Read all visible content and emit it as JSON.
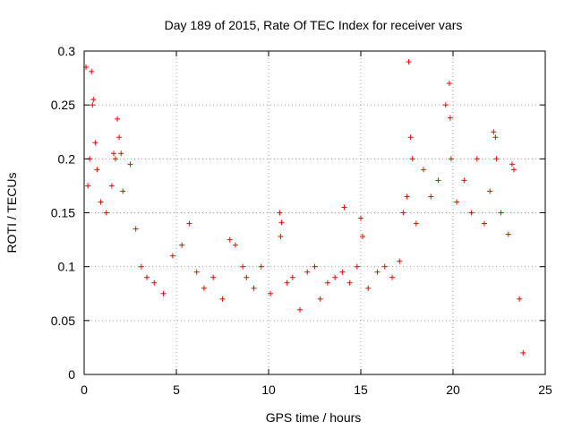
{
  "chart_data": {
    "type": "scatter",
    "title": "Day 189 of 2015, Rate Of TEC Index for receiver vars",
    "xlabel": "GPS time / hours",
    "ylabel": "ROTI / TECUs",
    "xlim": [
      0,
      25
    ],
    "ylim": [
      0,
      0.3
    ],
    "x_ticks": [
      "0",
      "5",
      "10",
      "15",
      "20",
      "25"
    ],
    "y_ticks": [
      "0",
      "0.05",
      "0.1",
      "0.15",
      "0.2",
      "0.25",
      "0.3"
    ],
    "grid": true,
    "marker": "+",
    "color": "#ff0000",
    "series": [
      {
        "name": "ROTI",
        "points": [
          [
            0.1,
            0.285
          ],
          [
            0.4,
            0.281
          ],
          [
            0.45,
            0.25
          ],
          [
            0.5,
            0.255
          ],
          [
            0.3,
            0.2
          ],
          [
            0.2,
            0.175
          ],
          [
            0.6,
            0.215
          ],
          [
            0.7,
            0.19
          ],
          [
            0.9,
            0.16
          ],
          [
            1.2,
            0.15
          ],
          [
            1.5,
            0.175
          ],
          [
            1.6,
            0.205
          ],
          [
            1.7,
            0.2
          ],
          [
            1.8,
            0.237
          ],
          [
            1.9,
            0.22
          ],
          [
            2.0,
            0.205
          ],
          [
            2.1,
            0.17
          ],
          [
            2.5,
            0.195
          ],
          [
            2.8,
            0.135
          ],
          [
            3.1,
            0.1
          ],
          [
            3.4,
            0.09
          ],
          [
            3.8,
            0.085
          ],
          [
            4.3,
            0.075
          ],
          [
            4.8,
            0.11
          ],
          [
            5.3,
            0.12
          ],
          [
            5.7,
            0.14
          ],
          [
            6.1,
            0.095
          ],
          [
            6.5,
            0.08
          ],
          [
            7.0,
            0.09
          ],
          [
            7.5,
            0.07
          ],
          [
            7.9,
            0.125
          ],
          [
            8.2,
            0.12
          ],
          [
            8.6,
            0.1
          ],
          [
            8.8,
            0.09
          ],
          [
            9.2,
            0.08
          ],
          [
            9.6,
            0.1
          ],
          [
            10.1,
            0.075
          ],
          [
            10.6,
            0.15
          ],
          [
            10.7,
            0.141
          ],
          [
            10.65,
            0.128
          ],
          [
            11.0,
            0.085
          ],
          [
            11.3,
            0.09
          ],
          [
            11.7,
            0.06
          ],
          [
            12.1,
            0.095
          ],
          [
            12.5,
            0.1
          ],
          [
            12.8,
            0.07
          ],
          [
            13.2,
            0.085
          ],
          [
            13.6,
            0.09
          ],
          [
            14.0,
            0.095
          ],
          [
            14.1,
            0.155
          ],
          [
            14.4,
            0.085
          ],
          [
            14.8,
            0.1
          ],
          [
            15.0,
            0.145
          ],
          [
            15.1,
            0.128
          ],
          [
            15.4,
            0.08
          ],
          [
            15.9,
            0.095
          ],
          [
            16.3,
            0.1
          ],
          [
            16.7,
            0.09
          ],
          [
            17.1,
            0.105
          ],
          [
            17.3,
            0.15
          ],
          [
            17.5,
            0.165
          ],
          [
            17.6,
            0.29
          ],
          [
            17.7,
            0.22
          ],
          [
            17.8,
            0.2
          ],
          [
            18.0,
            0.14
          ],
          [
            18.4,
            0.19
          ],
          [
            18.8,
            0.165
          ],
          [
            19.2,
            0.18
          ],
          [
            19.6,
            0.25
          ],
          [
            19.8,
            0.27
          ],
          [
            19.85,
            0.238
          ],
          [
            19.9,
            0.2
          ],
          [
            20.2,
            0.16
          ],
          [
            20.6,
            0.18
          ],
          [
            21.0,
            0.15
          ],
          [
            21.3,
            0.2
          ],
          [
            21.7,
            0.14
          ],
          [
            22.0,
            0.17
          ],
          [
            22.2,
            0.225
          ],
          [
            22.3,
            0.22
          ],
          [
            22.35,
            0.2
          ],
          [
            22.6,
            0.15
          ],
          [
            23.0,
            0.13
          ],
          [
            23.2,
            0.195
          ],
          [
            23.3,
            0.19
          ],
          [
            23.6,
            0.07
          ],
          [
            23.8,
            0.02
          ]
        ]
      }
    ]
  }
}
